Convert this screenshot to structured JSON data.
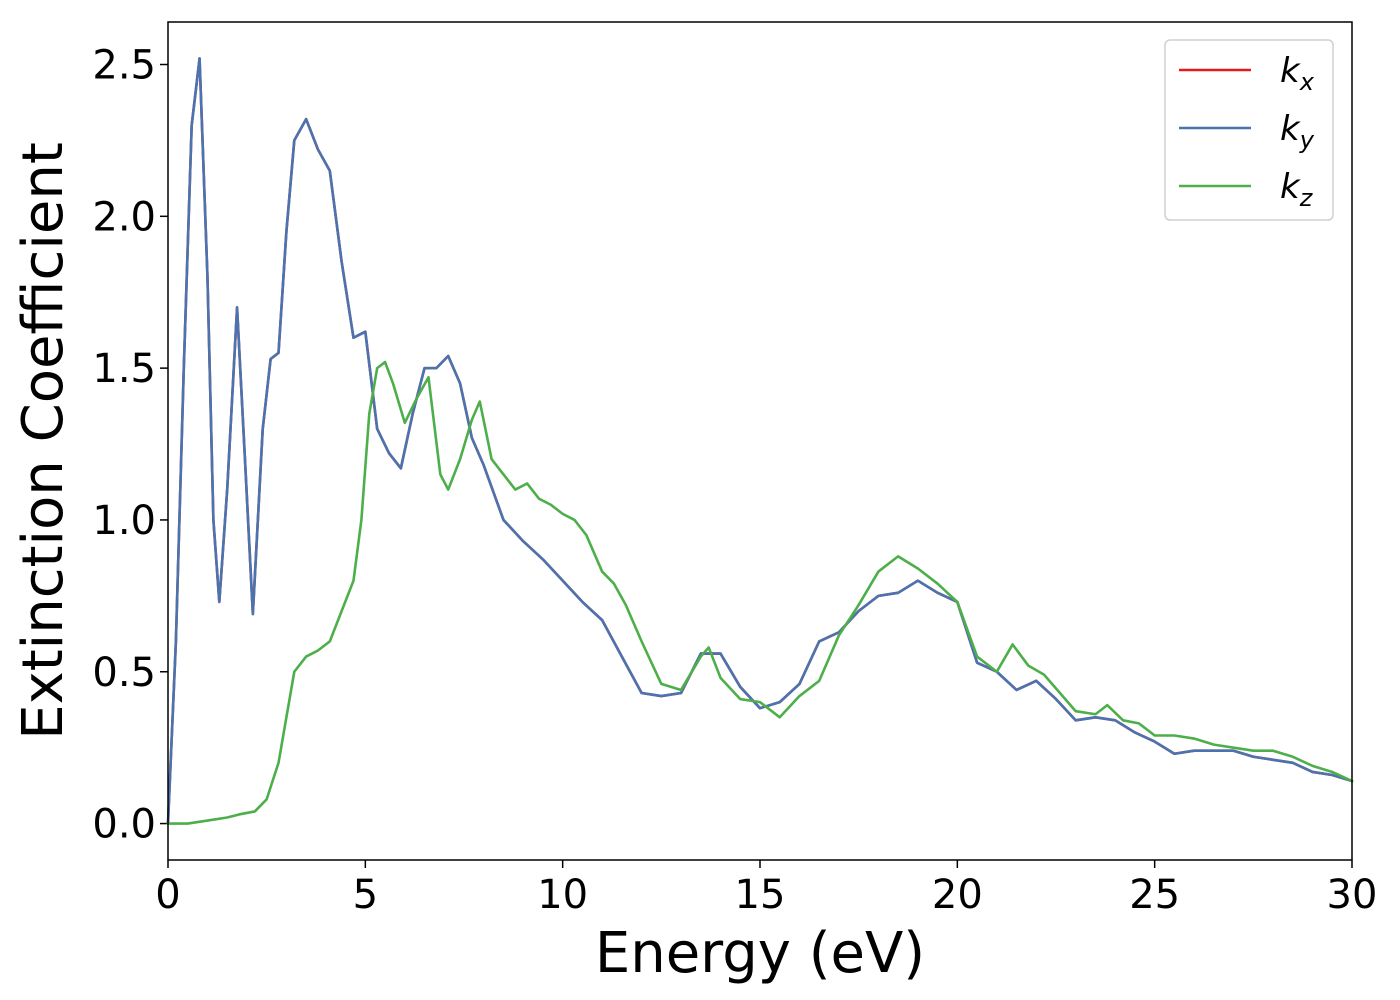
{
  "chart_data": {
    "type": "line",
    "xlabel": "Energy (eV)",
    "ylabel": "Extinction Coefficient",
    "xlim": [
      0,
      30
    ],
    "ylim": [
      -0.12,
      2.64
    ],
    "xticks": [
      0,
      5,
      10,
      15,
      20,
      25,
      30
    ],
    "xtick_labels": [
      "0",
      "5",
      "10",
      "15",
      "20",
      "25",
      "30"
    ],
    "yticks": [
      0.0,
      0.5,
      1.0,
      1.5,
      2.0,
      2.5
    ],
    "ytick_labels": [
      "0.0",
      "0.5",
      "1.0",
      "1.5",
      "2.0",
      "2.5"
    ],
    "grid": false,
    "legend_position": "top-right",
    "series": [
      {
        "name": "k_x",
        "label_main": "k",
        "label_sub": "x",
        "color": "#e41a1c",
        "x": [
          0,
          0.2,
          0.4,
          0.6,
          0.8,
          1.0,
          1.15,
          1.3,
          1.5,
          1.75,
          1.95,
          2.15,
          2.4,
          2.6,
          2.8,
          3.0,
          3.2,
          3.5,
          3.8,
          4.1,
          4.4,
          4.7,
          5.0,
          5.3,
          5.6,
          5.9,
          6.2,
          6.5,
          6.8,
          7.1,
          7.4,
          7.7,
          8.0,
          8.5,
          9.0,
          9.5,
          10.0,
          10.5,
          11.0,
          11.5,
          12.0,
          12.5,
          13.0,
          13.5,
          14.0,
          14.5,
          15.0,
          15.5,
          16.0,
          16.5,
          17.0,
          17.5,
          18.0,
          18.5,
          19.0,
          19.5,
          20.0,
          20.5,
          21.0,
          21.5,
          22.0,
          22.5,
          23.0,
          23.5,
          24.0,
          24.5,
          25.0,
          25.5,
          26.0,
          26.5,
          27.0,
          27.5,
          28.0,
          28.5,
          29.0,
          29.5,
          30.0
        ],
        "y": [
          0.0,
          0.6,
          1.5,
          2.3,
          2.52,
          1.8,
          1.0,
          0.73,
          1.1,
          1.7,
          1.2,
          0.69,
          1.3,
          1.53,
          1.55,
          1.95,
          2.25,
          2.32,
          2.22,
          2.15,
          1.85,
          1.6,
          1.62,
          1.3,
          1.22,
          1.17,
          1.35,
          1.5,
          1.5,
          1.54,
          1.45,
          1.27,
          1.18,
          1.0,
          0.93,
          0.87,
          0.8,
          0.73,
          0.67,
          0.55,
          0.43,
          0.42,
          0.43,
          0.56,
          0.56,
          0.45,
          0.38,
          0.4,
          0.46,
          0.6,
          0.63,
          0.7,
          0.75,
          0.76,
          0.8,
          0.76,
          0.73,
          0.53,
          0.5,
          0.44,
          0.47,
          0.41,
          0.34,
          0.35,
          0.34,
          0.3,
          0.27,
          0.23,
          0.24,
          0.24,
          0.24,
          0.22,
          0.21,
          0.2,
          0.17,
          0.16,
          0.14
        ]
      },
      {
        "name": "k_y",
        "label_main": "k",
        "label_sub": "y",
        "color": "#4a74b0",
        "x": [
          0,
          0.2,
          0.4,
          0.6,
          0.8,
          1.0,
          1.15,
          1.3,
          1.5,
          1.75,
          1.95,
          2.15,
          2.4,
          2.6,
          2.8,
          3.0,
          3.2,
          3.5,
          3.8,
          4.1,
          4.4,
          4.7,
          5.0,
          5.3,
          5.6,
          5.9,
          6.2,
          6.5,
          6.8,
          7.1,
          7.4,
          7.7,
          8.0,
          8.5,
          9.0,
          9.5,
          10.0,
          10.5,
          11.0,
          11.5,
          12.0,
          12.5,
          13.0,
          13.5,
          14.0,
          14.5,
          15.0,
          15.5,
          16.0,
          16.5,
          17.0,
          17.5,
          18.0,
          18.5,
          19.0,
          19.5,
          20.0,
          20.5,
          21.0,
          21.5,
          22.0,
          22.5,
          23.0,
          23.5,
          24.0,
          24.5,
          25.0,
          25.5,
          26.0,
          26.5,
          27.0,
          27.5,
          28.0,
          28.5,
          29.0,
          29.5,
          30.0
        ],
        "y": [
          0.0,
          0.6,
          1.5,
          2.3,
          2.52,
          1.8,
          1.0,
          0.73,
          1.1,
          1.7,
          1.2,
          0.69,
          1.3,
          1.53,
          1.55,
          1.95,
          2.25,
          2.32,
          2.22,
          2.15,
          1.85,
          1.6,
          1.62,
          1.3,
          1.22,
          1.17,
          1.35,
          1.5,
          1.5,
          1.54,
          1.45,
          1.27,
          1.18,
          1.0,
          0.93,
          0.87,
          0.8,
          0.73,
          0.67,
          0.55,
          0.43,
          0.42,
          0.43,
          0.56,
          0.56,
          0.45,
          0.38,
          0.4,
          0.46,
          0.6,
          0.63,
          0.7,
          0.75,
          0.76,
          0.8,
          0.76,
          0.73,
          0.53,
          0.5,
          0.44,
          0.47,
          0.41,
          0.34,
          0.35,
          0.34,
          0.3,
          0.27,
          0.23,
          0.24,
          0.24,
          0.24,
          0.22,
          0.21,
          0.2,
          0.17,
          0.16,
          0.14
        ]
      },
      {
        "name": "k_z",
        "label_main": "k",
        "label_sub": "z",
        "color": "#4daf4a",
        "x": [
          0,
          0.5,
          1.0,
          1.5,
          1.8,
          2.2,
          2.5,
          2.8,
          3.0,
          3.2,
          3.5,
          3.8,
          4.1,
          4.4,
          4.7,
          4.9,
          5.1,
          5.3,
          5.5,
          5.7,
          6.0,
          6.3,
          6.6,
          6.9,
          7.1,
          7.4,
          7.7,
          7.9,
          8.2,
          8.5,
          8.8,
          9.1,
          9.4,
          9.7,
          10.0,
          10.3,
          10.6,
          11.0,
          11.3,
          11.6,
          12.0,
          12.5,
          13.0,
          13.5,
          13.7,
          14.0,
          14.5,
          15.0,
          15.5,
          16.0,
          16.5,
          17.0,
          17.5,
          18.0,
          18.5,
          19.0,
          19.5,
          20.0,
          20.5,
          21.0,
          21.4,
          21.8,
          22.2,
          22.6,
          23.0,
          23.5,
          23.8,
          24.2,
          24.6,
          25.0,
          25.5,
          26.0,
          26.5,
          27.0,
          27.5,
          28.0,
          28.5,
          29.0,
          29.5,
          30.0
        ],
        "y": [
          0.0,
          0.0,
          0.01,
          0.02,
          0.03,
          0.04,
          0.08,
          0.2,
          0.35,
          0.5,
          0.55,
          0.57,
          0.6,
          0.7,
          0.8,
          1.0,
          1.35,
          1.5,
          1.52,
          1.45,
          1.32,
          1.4,
          1.47,
          1.15,
          1.1,
          1.2,
          1.33,
          1.39,
          1.2,
          1.15,
          1.1,
          1.12,
          1.07,
          1.05,
          1.02,
          1.0,
          0.95,
          0.83,
          0.79,
          0.72,
          0.6,
          0.46,
          0.44,
          0.55,
          0.58,
          0.48,
          0.41,
          0.4,
          0.35,
          0.42,
          0.47,
          0.62,
          0.72,
          0.83,
          0.88,
          0.84,
          0.79,
          0.73,
          0.55,
          0.5,
          0.59,
          0.52,
          0.49,
          0.43,
          0.37,
          0.36,
          0.39,
          0.34,
          0.33,
          0.29,
          0.29,
          0.28,
          0.26,
          0.25,
          0.24,
          0.24,
          0.22,
          0.19,
          0.17,
          0.14
        ]
      }
    ]
  }
}
